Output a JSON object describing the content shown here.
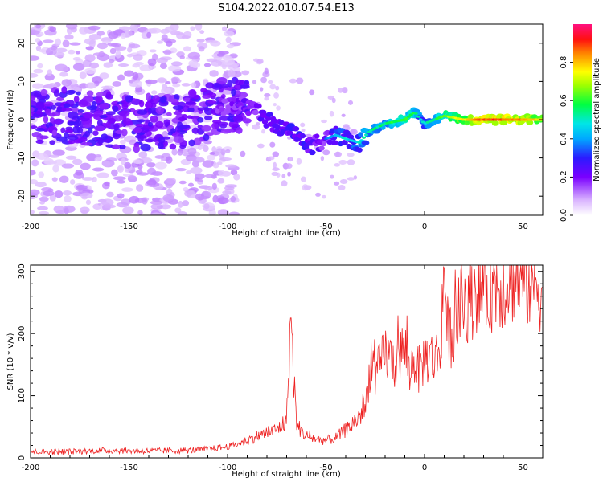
{
  "title": "S104.2022.010.07.54.E13",
  "chart_data": [
    {
      "type": "heatmap",
      "xlabel": "Height of straight line (km)",
      "ylabel": "Frequency (Hz)",
      "xlim": [
        -200,
        60
      ],
      "ylim": [
        -25,
        25
      ],
      "xticks": [
        -200,
        -150,
        -100,
        -50,
        0,
        50
      ],
      "yticks": [
        -20,
        -10,
        0,
        10,
        20
      ],
      "colorbar": {
        "label": "Normalized spectral amplitude",
        "range": [
          0,
          1
        ],
        "ticks": [
          0.0,
          0.2,
          0.4,
          0.6,
          0.8
        ],
        "colormap": "rainbow (white-violet-blue-cyan-green-yellow-red-magenta)"
      },
      "ridge": {
        "x": [
          -200,
          -180,
          -160,
          -140,
          -120,
          -105,
          -95,
          -85,
          -75,
          -65,
          -58,
          -50,
          -45,
          -40,
          -33,
          -28,
          -20,
          -10,
          -5,
          -2,
          0,
          5,
          10,
          20,
          30,
          40,
          50,
          60
        ],
        "y": [
          1,
          1,
          0,
          -1,
          0,
          3,
          4,
          2,
          -2,
          -4,
          -7,
          -5,
          -4,
          -5,
          -6,
          -3,
          -1,
          0,
          2,
          0,
          -1,
          0,
          1,
          0,
          0,
          0,
          0,
          0
        ],
        "amplitude": [
          0.2,
          0.22,
          0.22,
          0.22,
          0.22,
          0.25,
          0.3,
          0.32,
          0.35,
          0.38,
          0.35,
          0.3,
          0.4,
          0.42,
          0.45,
          0.5,
          0.5,
          0.6,
          0.55,
          0.45,
          0.45,
          0.5,
          0.6,
          0.75,
          0.85,
          0.85,
          0.8,
          0.75
        ]
      }
    },
    {
      "type": "line",
      "xlabel": "Height of straight line (km)",
      "ylabel": "SNR (10 * v/v)",
      "xlim": [
        -200,
        60
      ],
      "ylim": [
        0,
        310
      ],
      "xticks": [
        -200,
        -150,
        -100,
        -50,
        0,
        50
      ],
      "yticks": [
        0,
        100,
        200,
        300
      ],
      "series": [
        {
          "color": "#ee2222",
          "x": [
            -200,
            -180,
            -160,
            -140,
            -120,
            -110,
            -100,
            -95,
            -90,
            -85,
            -80,
            -75,
            -70,
            -68,
            -65,
            -62,
            -60,
            -55,
            -50,
            -45,
            -40,
            -35,
            -30,
            -27,
            -25,
            -22,
            -20,
            -15,
            -10,
            -8,
            -5,
            -3,
            0,
            3,
            5,
            8,
            10,
            12,
            15,
            18,
            20,
            25,
            30,
            35,
            40,
            45,
            50,
            55,
            60
          ],
          "y": [
            10,
            10,
            12,
            11,
            12,
            14,
            18,
            22,
            28,
            35,
            40,
            45,
            60,
            225,
            55,
            40,
            35,
            30,
            28,
            32,
            45,
            60,
            80,
            165,
            130,
            150,
            170,
            150,
            180,
            135,
            160,
            140,
            160,
            165,
            155,
            175,
            305,
            190,
            210,
            235,
            250,
            265,
            275,
            278,
            285,
            295,
            290,
            282,
            275
          ]
        }
      ],
      "annotations": [
        {
          "x": -68,
          "y": 225
        },
        {
          "x": 10,
          "y": 305
        }
      ]
    }
  ]
}
